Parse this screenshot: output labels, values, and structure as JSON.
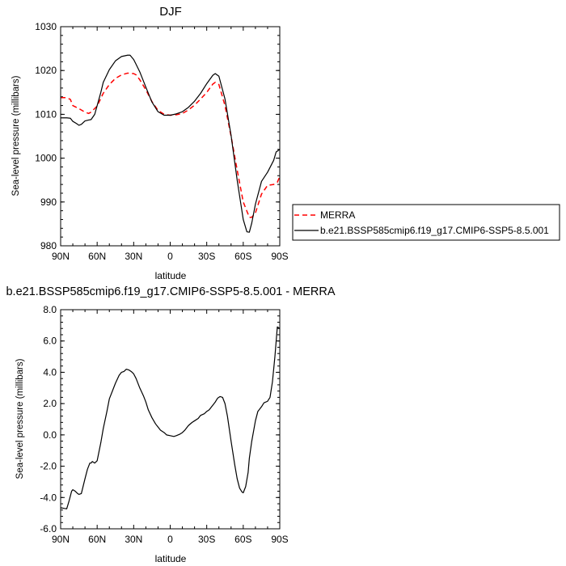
{
  "chart_data": [
    {
      "type": "line",
      "title": "DJF",
      "xlabel": "latitude",
      "ylabel": "Sea-level pressure (millibars)",
      "xlim": [
        90,
        -90
      ],
      "ylim": [
        980,
        1030
      ],
      "x_ticks": [
        90,
        60,
        30,
        0,
        -30,
        -60,
        -90
      ],
      "x_tick_labels": [
        "90N",
        "60N",
        "30N",
        "0",
        "30S",
        "60S",
        "90S"
      ],
      "y_ticks": [
        980,
        990,
        1000,
        1010,
        1020,
        1030
      ],
      "y_tick_labels": [
        "980",
        "990",
        "1000",
        "1010",
        "1020",
        "1030"
      ],
      "legend_position": "right",
      "series": [
        {
          "name": "MERRA",
          "color": "#ff0000",
          "dash": true,
          "x": [
            90,
            85,
            82,
            80,
            75,
            70,
            67,
            65,
            60,
            55,
            50,
            45,
            40,
            35,
            30,
            28,
            25,
            20,
            15,
            10,
            5,
            0,
            -5,
            -10,
            -15,
            -20,
            -25,
            -30,
            -35,
            -37,
            -40,
            -45,
            -50,
            -55,
            -60,
            -65,
            -67,
            -70,
            -75,
            -80,
            -85,
            -88,
            -90
          ],
          "values": [
            1013.8,
            1013.8,
            1013.4,
            1012.0,
            1011.3,
            1010.5,
            1010.2,
            1010.5,
            1011.9,
            1014.8,
            1016.8,
            1018.2,
            1019.0,
            1019.4,
            1019.3,
            1019.0,
            1017.9,
            1015.6,
            1012.9,
            1010.9,
            1010.0,
            1009.8,
            1009.9,
            1010.2,
            1011.0,
            1012.1,
            1013.5,
            1015.0,
            1016.9,
            1017.3,
            1016.8,
            1012.0,
            1005.0,
            997.3,
            990.0,
            986.5,
            986.5,
            987.5,
            991.8,
            993.8,
            994.0,
            994.5,
            995.8
          ]
        },
        {
          "name": "b.e21.BSSP585cmip6.f19_g17.CMIP6-SSP5-8.5.001",
          "color": "#000000",
          "dash": false,
          "x": [
            90,
            85,
            82,
            80,
            77,
            75,
            73,
            70,
            67,
            65,
            62,
            60,
            57,
            55,
            50,
            45,
            40,
            35,
            33,
            30,
            28,
            25,
            20,
            15,
            10,
            5,
            0,
            -5,
            -10,
            -15,
            -20,
            -25,
            -30,
            -35,
            -37,
            -40,
            -45,
            -50,
            -55,
            -60,
            -63,
            -65,
            -67,
            -70,
            -75,
            -80,
            -85,
            -87,
            -90
          ],
          "values": [
            1009.2,
            1009.2,
            1009.1,
            1008.4,
            1007.9,
            1007.5,
            1007.7,
            1008.5,
            1008.7,
            1008.8,
            1010.0,
            1012.0,
            1015.0,
            1017.3,
            1020.2,
            1022.2,
            1023.2,
            1023.5,
            1023.5,
            1022.5,
            1021.4,
            1019.7,
            1016.2,
            1012.8,
            1010.6,
            1009.8,
            1009.8,
            1010.1,
            1010.6,
            1011.6,
            1013.0,
            1014.8,
            1017.0,
            1018.9,
            1019.3,
            1018.7,
            1013.5,
            1005.2,
            995.0,
            986.0,
            983.2,
            983.1,
            985.2,
            989.5,
            994.7,
            996.8,
            999.5,
            1001.4,
            1002.0
          ]
        }
      ]
    },
    {
      "type": "line",
      "title": "b.e21.BSSP585cmip6.f19_g17.CMIP6-SSP5-8.5.001 - MERRA",
      "xlabel": "latitude",
      "ylabel": "Sea-level pressure (millibars)",
      "xlim": [
        90,
        -90
      ],
      "ylim": [
        -6.0,
        8.0
      ],
      "x_ticks": [
        90,
        60,
        30,
        0,
        -30,
        -60,
        -90
      ],
      "x_tick_labels": [
        "90N",
        "60N",
        "30N",
        "0",
        "30S",
        "60S",
        "90S"
      ],
      "y_ticks": [
        -6,
        -4,
        -2,
        0,
        2,
        4,
        6,
        8
      ],
      "y_tick_labels": [
        "-6.0",
        "-4.0",
        "-2.0",
        "0.0",
        "2.0",
        "4.0",
        "6.0",
        "8.0"
      ],
      "series": [
        {
          "color": "#000000",
          "dash": false,
          "x": [
            90,
            87,
            85,
            83,
            81,
            80,
            78,
            76,
            75,
            73,
            70,
            68,
            66,
            65,
            64,
            62,
            60,
            57,
            55,
            52,
            50,
            47,
            45,
            42,
            40,
            38,
            36,
            34,
            32,
            30,
            28,
            25,
            22,
            20,
            18,
            15,
            12,
            10,
            8,
            5,
            3,
            0,
            -3,
            -5,
            -8,
            -10,
            -12,
            -15,
            -18,
            -20,
            -23,
            -25,
            -28,
            -30,
            -32,
            -35,
            -37,
            -39,
            -41,
            -43,
            -45,
            -47,
            -50,
            -53,
            -55,
            -57,
            -59,
            -60,
            -62,
            -64,
            -65,
            -67,
            -70,
            -72,
            -75,
            -77,
            -80,
            -82,
            -84,
            -86,
            -88,
            -90
          ],
          "values": [
            -4.65,
            -4.7,
            -4.72,
            -4.2,
            -3.6,
            -3.5,
            -3.6,
            -3.75,
            -3.8,
            -3.75,
            -2.8,
            -2.2,
            -1.8,
            -1.8,
            -1.7,
            -1.8,
            -1.65,
            -0.5,
            0.4,
            1.5,
            2.3,
            2.9,
            3.3,
            3.8,
            4.0,
            4.05,
            4.2,
            4.15,
            4.05,
            3.9,
            3.6,
            3.0,
            2.5,
            2.1,
            1.6,
            1.1,
            0.7,
            0.5,
            0.3,
            0.15,
            0.0,
            -0.05,
            -0.1,
            -0.05,
            0.05,
            0.15,
            0.3,
            0.6,
            0.8,
            0.9,
            1.05,
            1.25,
            1.35,
            1.5,
            1.6,
            1.9,
            2.1,
            2.35,
            2.45,
            2.4,
            2.0,
            1.2,
            -0.4,
            -1.9,
            -2.8,
            -3.4,
            -3.65,
            -3.7,
            -3.3,
            -2.4,
            -1.5,
            -0.4,
            0.9,
            1.5,
            1.8,
            2.05,
            2.15,
            2.4,
            3.4,
            5.0,
            6.9,
            6.8
          ]
        }
      ]
    }
  ]
}
